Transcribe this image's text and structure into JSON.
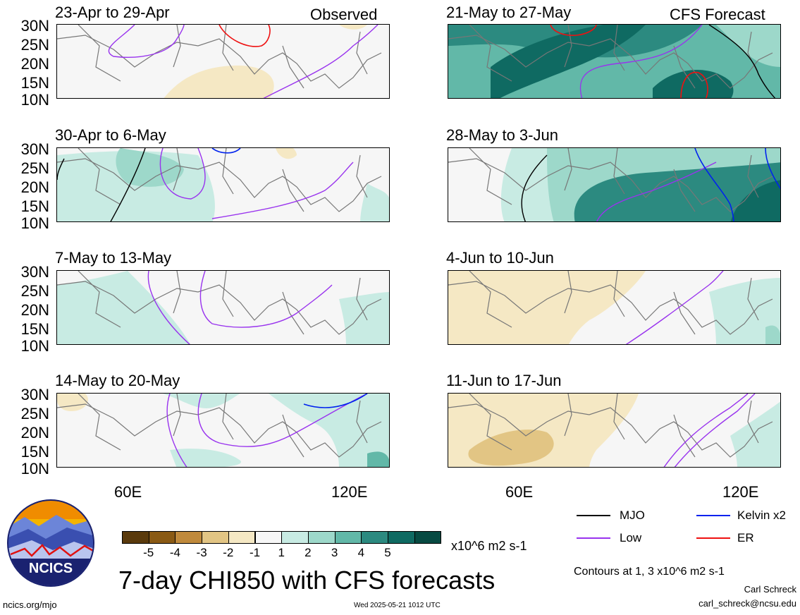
{
  "panels_left": [
    {
      "title": "23-Apr to 29-Apr",
      "label": "Observed"
    },
    {
      "title": "30-Apr to 6-May",
      "label": ""
    },
    {
      "title": "7-May to 13-May",
      "label": ""
    },
    {
      "title": "14-May to 20-May",
      "label": ""
    }
  ],
  "panels_right": [
    {
      "title": "21-May to 27-May",
      "label": "CFS Forecast"
    },
    {
      "title": "28-May to 3-Jun",
      "label": ""
    },
    {
      "title": "4-Jun to 10-Jun",
      "label": ""
    },
    {
      "title": "11-Jun to 17-Jun",
      "label": ""
    }
  ],
  "lat_labels": [
    "30N",
    "25N",
    "20N",
    "15N",
    "10N"
  ],
  "lon_labels": [
    "60E",
    "120E"
  ],
  "colorbar": {
    "colors": [
      "#5a3a0c",
      "#8a5a14",
      "#c08a3c",
      "#e2c584",
      "#f5e8c4",
      "#f7f7f7",
      "#c8ebe3",
      "#9dd8ca",
      "#62b8a8",
      "#2c8a80",
      "#0f6a62",
      "#074a42"
    ],
    "ticks": [
      "-5",
      "-4",
      "-3",
      "-2",
      "-1",
      "1",
      "2",
      "3",
      "4",
      "5"
    ],
    "units": "x10^6 m2 s-1"
  },
  "legend": {
    "items": [
      {
        "label": "MJO",
        "color": "#000000"
      },
      {
        "label": "Kelvin x2",
        "color": "#0022ee"
      },
      {
        "label": "Low",
        "color": "#9933ee"
      },
      {
        "label": "ER",
        "color": "#ee1111"
      }
    ],
    "contours_note": "Contours at 1, 3 x10^6 m2 s-1"
  },
  "title": "7-day CHI850 with CFS forecasts",
  "logo_text": "NCICS",
  "footer": {
    "url": "ncics.org/mjo",
    "timestamp": "Wed 2025-05-21 1012 UTC",
    "author": "Carl Schreck",
    "email": "carl_schreck@ncsu.edu"
  }
}
